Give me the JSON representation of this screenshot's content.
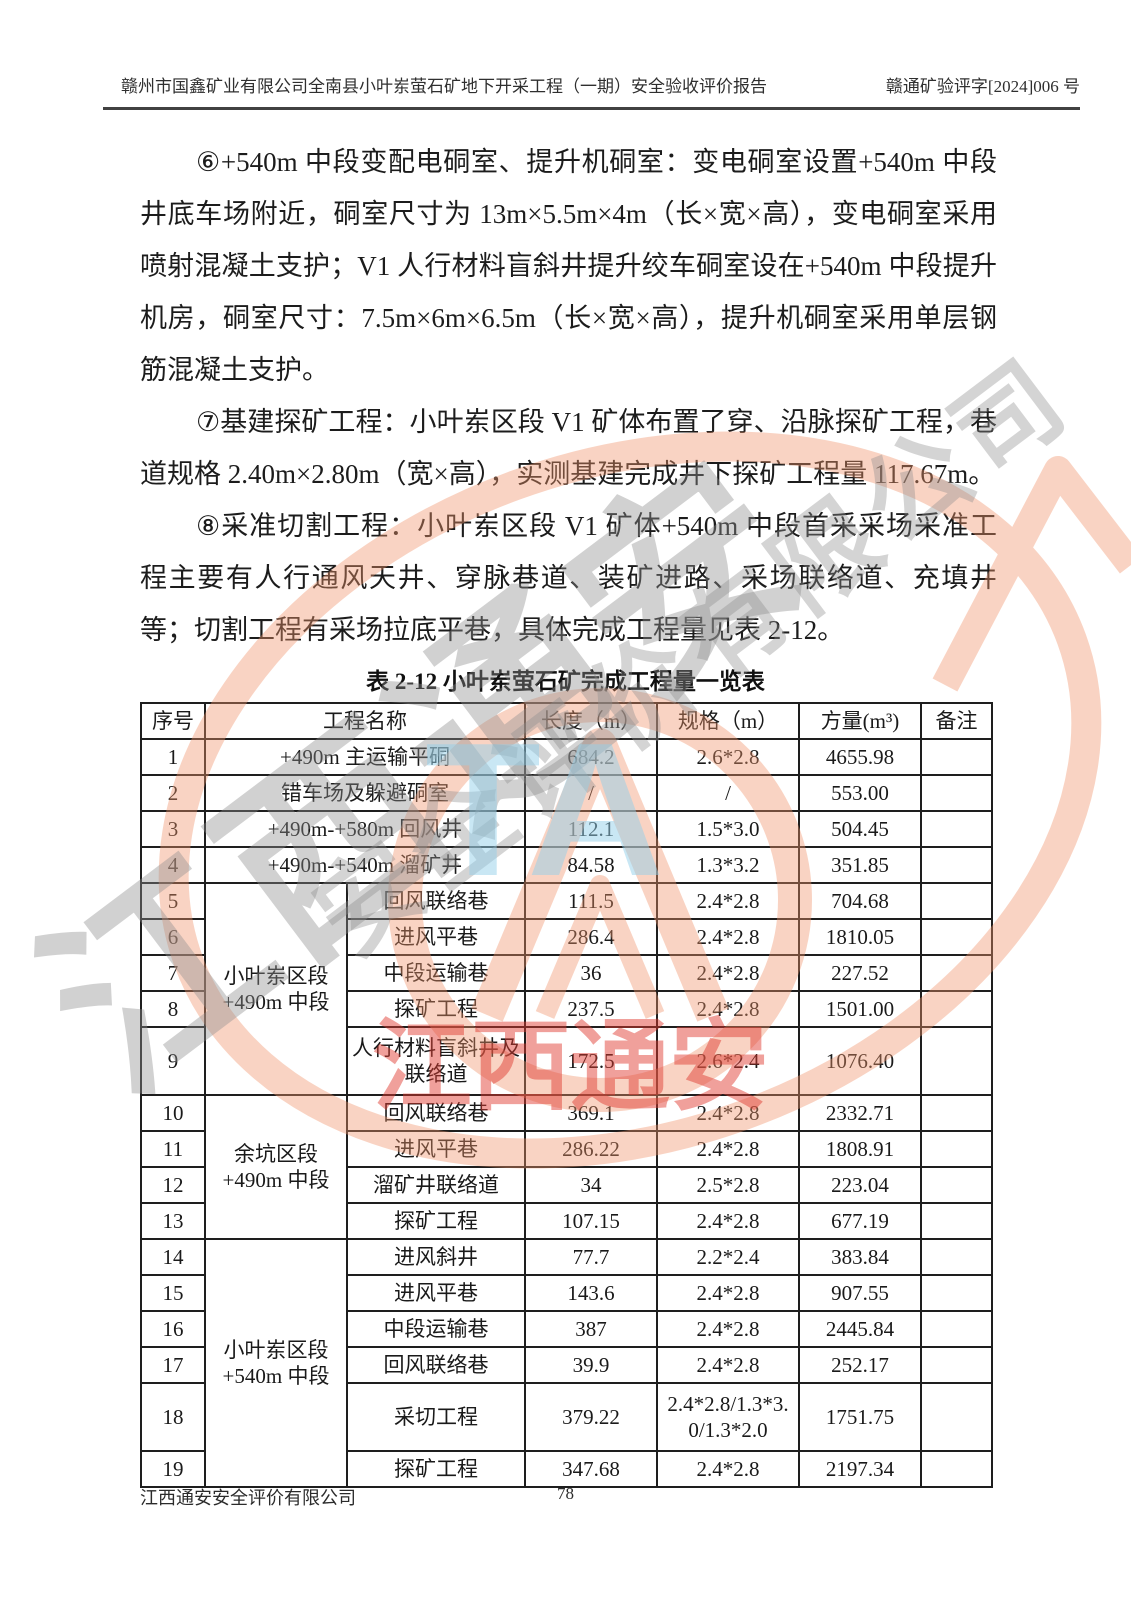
{
  "header": {
    "left_title": "赣州市国鑫矿业有限公司全南县小叶岽萤石矿地下开采工程（一期）安全验收评价报告",
    "right_code": "赣通矿验评字[2024]006 号"
  },
  "paragraphs": [
    {
      "text": "⑥+540m 中段变配电硐室、提升机硐室：变电硐室设置+540m 中段井底车场附近，硐室尺寸为 13m×5.5m×4m（长×宽×高），变电硐室采用喷射混凝土支护；V1 人行材料盲斜井提升绞车硐室设在+540m 中段提升机房，硐室尺寸：7.5m×6m×6.5m（长×宽×高），提升机硐室采用单层钢筋混凝土支护。"
    },
    {
      "text": "⑦基建探矿工程：小叶岽区段 V1 矿体布置了穿、沿脉探矿工程，巷道规格 2.40m×2.80m（宽×高），实测基建完成井下探矿工程量 117.67m。"
    },
    {
      "text": "⑧采准切割工程：小叶岽区段 V1 矿体+540m 中段首采采场采准工程主要有人行通风天井、穿脉巷道、装矿进路、采场联络道、充填井等；切割工程有采场拉底平巷，具体完成工程量见表 2-12。"
    }
  ],
  "table": {
    "title": "表 2-12 小叶岽萤石矿完成工程量一览表",
    "headers": [
      "序号",
      "工程名称",
      "长度（m）",
      "规格（m）",
      "方量(m³)",
      "备注"
    ],
    "rows": [
      {
        "no": "1",
        "name": "+490m 主运输平硐",
        "length": "684.2",
        "spec": "2.6*2.8",
        "volume": "4655.98",
        "note": ""
      },
      {
        "no": "2",
        "name": "错车场及躲避硐室",
        "length": "/",
        "spec": "/",
        "volume": "553.00",
        "note": ""
      },
      {
        "no": "3",
        "name": "+490m-+580m 回风井",
        "length": "112.1",
        "spec": "1.5*3.0",
        "volume": "504.45",
        "note": ""
      },
      {
        "no": "4",
        "name": "+490m-+540m 溜矿井",
        "length": "84.58",
        "spec": "1.3*3.2",
        "volume": "351.85",
        "note": ""
      },
      {
        "no": "5",
        "group": {
          "label": "小叶岽区段\n+490m 中段",
          "span": 5
        },
        "name": "回风联络巷",
        "length": "111.5",
        "spec": "2.4*2.8",
        "volume": "704.68",
        "note": ""
      },
      {
        "no": "6",
        "name": "进风平巷",
        "length": "286.4",
        "spec": "2.4*2.8",
        "volume": "1810.05",
        "note": ""
      },
      {
        "no": "7",
        "name": "中段运输巷",
        "length": "36",
        "spec": "2.4*2.8",
        "volume": "227.52",
        "note": ""
      },
      {
        "no": "8",
        "name": "探矿工程",
        "length": "237.5",
        "spec": "2.4*2.8",
        "volume": "1501.00",
        "note": ""
      },
      {
        "no": "9",
        "tall": true,
        "name": "人行材料盲斜井及联络道",
        "length": "172.5",
        "spec": "2.6*2.4",
        "volume": "1076.40",
        "note": ""
      },
      {
        "no": "10",
        "group": {
          "label": "余坑区段\n+490m 中段",
          "span": 4
        },
        "name": "回风联络巷",
        "length": "369.1",
        "spec": "2.4*2.8",
        "volume": "2332.71",
        "note": ""
      },
      {
        "no": "11",
        "name": "进风平巷",
        "length": "286.22",
        "spec": "2.4*2.8",
        "volume": "1808.91",
        "note": ""
      },
      {
        "no": "12",
        "name": "溜矿井联络道",
        "length": "34",
        "spec": "2.5*2.8",
        "volume": "223.04",
        "note": ""
      },
      {
        "no": "13",
        "name": "探矿工程",
        "length": "107.15",
        "spec": "2.4*2.8",
        "volume": "677.19",
        "note": ""
      },
      {
        "no": "14",
        "group": {
          "label": "小叶岽区段\n+540m 中段",
          "span": 6
        },
        "name": "进风斜井",
        "length": "77.7",
        "spec": "2.2*2.4",
        "volume": "383.84",
        "note": ""
      },
      {
        "no": "15",
        "name": "进风平巷",
        "length": "143.6",
        "spec": "2.4*2.8",
        "volume": "907.55",
        "note": ""
      },
      {
        "no": "16",
        "name": "中段运输巷",
        "length": "387",
        "spec": "2.4*2.8",
        "volume": "2445.84",
        "note": ""
      },
      {
        "no": "17",
        "name": "回风联络巷",
        "length": "39.9",
        "spec": "2.4*2.8",
        "volume": "252.17",
        "note": ""
      },
      {
        "no": "18",
        "tall": true,
        "name": "采切工程",
        "length": "379.22",
        "spec": "2.4*2.8/1.3*3.0/1.3*2.0",
        "volume": "1751.75",
        "note": ""
      },
      {
        "no": "19",
        "name": "探矿工程",
        "length": "347.68",
        "spec": "2.4*2.8",
        "volume": "2197.34",
        "note": ""
      }
    ]
  },
  "watermark": {
    "gray_text_large": "江西通安",
    "gray_text_small": "安全评价有限公司",
    "red_text": "江西通安",
    "logo_letters": "TA",
    "colors": {
      "orange": "#F1946B",
      "red": "#E03A30",
      "gray": "#8F8F8F",
      "blue": "#94D0EA"
    }
  },
  "footer": {
    "company": "江西通安安全评价有限公司",
    "page_number": "78"
  }
}
